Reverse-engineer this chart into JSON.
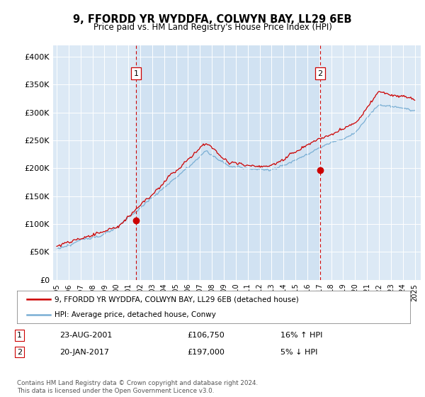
{
  "title": "9, FFORDD YR WYDDFA, COLWYN BAY, LL29 6EB",
  "subtitle": "Price paid vs. HM Land Registry's House Price Index (HPI)",
  "legend_entry1": "9, FFORDD YR WYDDFA, COLWYN BAY, LL29 6EB (detached house)",
  "legend_entry2": "HPI: Average price, detached house, Conwy",
  "annotation1_label": "1",
  "annotation1_date": "23-AUG-2001",
  "annotation1_price": "£106,750",
  "annotation1_hpi": "16% ↑ HPI",
  "annotation2_label": "2",
  "annotation2_date": "20-JAN-2017",
  "annotation2_price": "£197,000",
  "annotation2_hpi": "5% ↓ HPI",
  "footer": "Contains HM Land Registry data © Crown copyright and database right 2024.\nThis data is licensed under the Open Government Licence v3.0.",
  "bg_color": "#dce9f5",
  "bg_shaded": "#c8ddf0",
  "plot_outer_bg": "#e8eff8",
  "red_color": "#cc0000",
  "blue_color": "#7aafd4",
  "ylim": [
    0,
    420000
  ],
  "yticks": [
    0,
    50000,
    100000,
    150000,
    200000,
    250000,
    300000,
    350000,
    400000
  ],
  "ytick_labels": [
    "£0",
    "£50K",
    "£100K",
    "£150K",
    "£200K",
    "£250K",
    "£300K",
    "£350K",
    "£400K"
  ],
  "marker1_x": 2001.65,
  "marker1_y": 106750,
  "marker2_x": 2017.05,
  "marker2_y": 197000,
  "xmin": 1994.7,
  "xmax": 2025.5
}
